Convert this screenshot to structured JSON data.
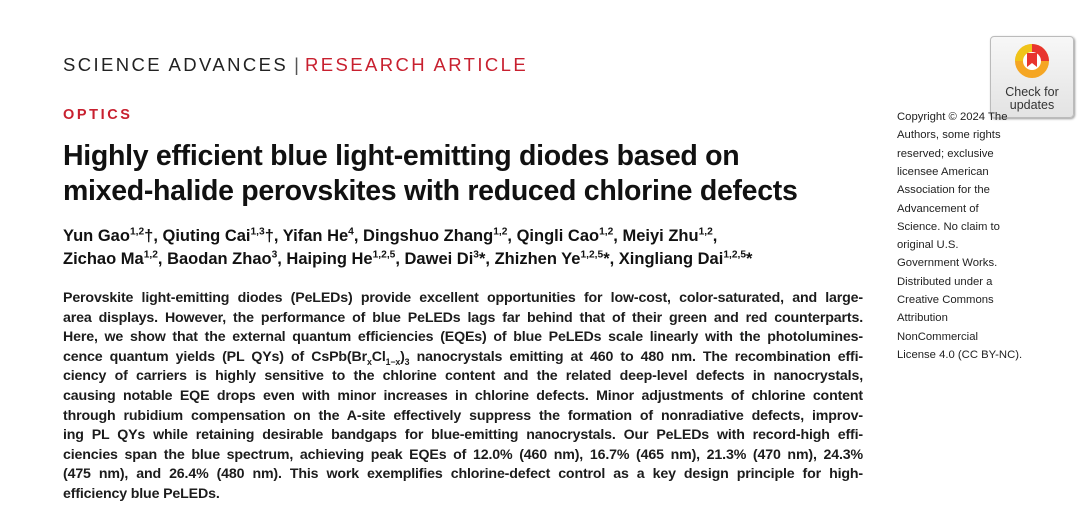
{
  "header": {
    "journal": "SCIENCE ADVANCES",
    "separator": "|",
    "article_type": "RESEARCH ARTICLE"
  },
  "section": "OPTICS",
  "title": {
    "lines": [
      "Highly efficient blue light-emitting diodes based on",
      "mixed-halide perovskites with reduced chlorine defects"
    ]
  },
  "authors": {
    "lines": [
      [
        {
          "text": "Yun Gao"
        },
        {
          "sup": "1,2"
        },
        {
          "text": "†, Qiuting Cai"
        },
        {
          "sup": "1,3"
        },
        {
          "text": "†, Yifan He"
        },
        {
          "sup": "4"
        },
        {
          "text": ", Dingshuo Zhang"
        },
        {
          "sup": "1,2"
        },
        {
          "text": ", Qingli Cao"
        },
        {
          "sup": "1,2"
        },
        {
          "text": ", Meiyi Zhu"
        },
        {
          "sup": "1,2"
        },
        {
          "text": ","
        }
      ],
      [
        {
          "text": "Zichao Ma"
        },
        {
          "sup": "1,2"
        },
        {
          "text": ", Baodan Zhao"
        },
        {
          "sup": "3"
        },
        {
          "text": ", Haiping He"
        },
        {
          "sup": "1,2,5"
        },
        {
          "text": ", Dawei Di"
        },
        {
          "sup": "3"
        },
        {
          "text": "*, Zhizhen Ye"
        },
        {
          "sup": "1,2,5"
        },
        {
          "text": "*, Xingliang Dai"
        },
        {
          "sup": "1,2,5"
        },
        {
          "text": "*"
        }
      ]
    ]
  },
  "abstract": {
    "lines": [
      [
        {
          "text": "Perovskite light-emitting diodes (PeLEDs) provide excellent opportunities for low-cost, color-saturated, and large-"
        }
      ],
      [
        {
          "text": "area displays. However, the performance of blue PeLEDs lags far behind that of their green and red counterparts."
        }
      ],
      [
        {
          "text": "Here, we show that the external quantum efficiencies (EQEs) of blue PeLEDs scale linearly with the photolumines-"
        }
      ],
      [
        {
          "text": "cence quantum yields (PL QYs) of CsPb(Br"
        },
        {
          "sub": "x"
        },
        {
          "text": "Cl"
        },
        {
          "sub": "1−x"
        },
        {
          "text": ")"
        },
        {
          "sub": "3"
        },
        {
          "text": " nanocrystals emitting at 460 to 480 nm. The recombination effi-"
        }
      ],
      [
        {
          "text": "ciency of carriers is highly sensitive to the chlorine content and the related deep-level defects in nanocrystals,"
        }
      ],
      [
        {
          "text": "causing notable EQE drops even with minor increases in chlorine defects. Minor adjustments of chlorine content"
        }
      ],
      [
        {
          "text": "through rubidium compensation on the A-site effectively suppress the formation of nonradiative defects, improv-"
        }
      ],
      [
        {
          "text": "ing PL QYs while retaining desirable bandgaps for blue-emitting nanocrystals. Our PeLEDs with record-high effi-"
        }
      ],
      [
        {
          "text": "ciencies span the blue spectrum, achieving peak EQEs of 12.0% (460 nm), 16.7% (465 nm), 21.3% (470 nm), 24.3%"
        }
      ],
      [
        {
          "text": "(475 nm), and 26.4% (480 nm). This work exemplifies chlorine-defect control as a key design principle for high-"
        }
      ],
      [
        {
          "text": "efficiency blue PeLEDs."
        }
      ]
    ]
  },
  "sidebar": {
    "lines": [
      "Copyright © 2024 The",
      "Authors, some rights",
      "reserved; exclusive",
      "licensee American",
      "Association for the",
      "Advancement of",
      "Science. No claim to",
      "original U.S.",
      "Government Works.",
      "Distributed under a",
      "Creative Commons",
      "Attribution",
      "NonCommercial",
      "License 4.0 (CC BY-NC)."
    ]
  },
  "badge": {
    "lines": [
      "Check for",
      "updates"
    ]
  }
}
